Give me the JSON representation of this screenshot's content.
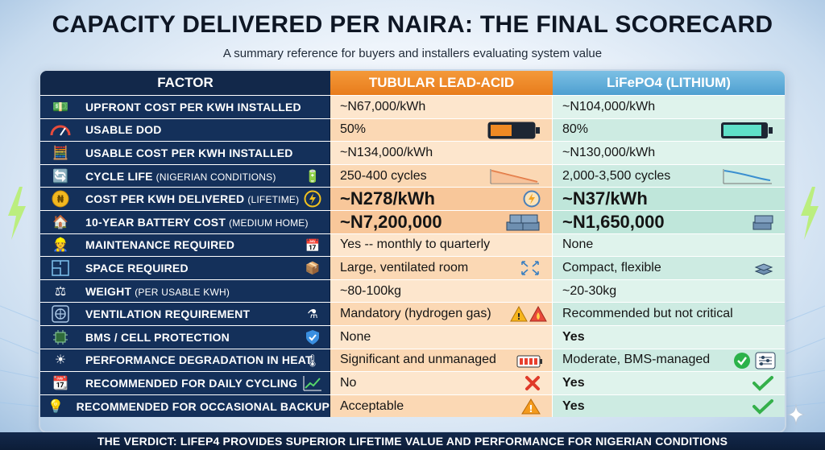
{
  "title": "CAPACITY DELIVERED PER NAIRA: THE FINAL SCORECARD",
  "subtitle": "A summary reference for buyers and installers evaluating system value",
  "headers": {
    "factor": "FACTOR",
    "lead": "TUBULAR LEAD-ACID",
    "lithium": "LiFePO4 (LITHIUM)"
  },
  "rows": [
    {
      "icon": "money-wrench-icon",
      "label": "UPFRONT COST PER kWh INSTALLED",
      "sub": "",
      "lead": "~N67,000/kWh",
      "lithium": "~N104,000/kWh"
    },
    {
      "icon": "gauge-icon",
      "label": "USABLE DoD",
      "sub": "",
      "lead": "50%",
      "lithium": "80%"
    },
    {
      "icon": "calculator-icon",
      "label": "USABLE COST PER kWh INSTALLED",
      "sub": "",
      "lead": "~N134,000/kWh",
      "lithium": "~N130,000/kWh"
    },
    {
      "icon": "cycle-icon",
      "label": "CYCLE LIFE",
      "sub": "(NIGERIAN CONDITIONS)",
      "lead": "250-400 cycles",
      "lithium": "2,000-3,500 cycles"
    },
    {
      "icon": "naira-coin-icon",
      "label": "COST PER kWh DELIVERED",
      "sub": "(LIFETIME)",
      "lead": "~N278/kWh",
      "lithium": "~N37/kWh"
    },
    {
      "icon": "house-icon",
      "label": "10-YEAR BATTERY COST",
      "sub": "(MEDIUM HOME)",
      "lead": "~N7,200,000",
      "lithium": "~N1,650,000"
    },
    {
      "icon": "worker-icon",
      "label": "MAINTENANCE REQUIRED",
      "sub": "",
      "lead": "Yes -- monthly to quarterly",
      "lithium": "None"
    },
    {
      "icon": "floorplan-icon",
      "label": "SPACE REQUIRED",
      "sub": "",
      "lead": "Large, ventilated room",
      "lithium": "Compact, flexible"
    },
    {
      "icon": "scale-icon",
      "label": "WEIGHT",
      "sub": "(PER USABLE kWh)",
      "lead": "~80-100kg",
      "lithium": "~20-30kg"
    },
    {
      "icon": "fan-icon",
      "label": "VENTILATION REQUIREMENT",
      "sub": "",
      "lead": "Mandatory (hydrogen gas)",
      "lithium": "Recommended but not critical"
    },
    {
      "icon": "chip-icon",
      "label": "BMS / CELL PROTECTION",
      "sub": "",
      "lead": "None",
      "lithium": "Yes"
    },
    {
      "icon": "sun-icon",
      "label": "PERFORMANCE DEGRADATION IN HEAT",
      "sub": "",
      "lead": "Significant and unmanaged",
      "lithium": "Moderate, BMS-managed"
    },
    {
      "icon": "calendar-icon",
      "label": "RECOMMENDED FOR DAILY CYCLING",
      "sub": "",
      "lead": "No",
      "lithium": "Yes"
    },
    {
      "icon": "bulb-icon",
      "label": "RECOMMENDED FOR OCCASIONAL BACKUP",
      "sub": "",
      "lead": "Acceptable",
      "lithium": "Yes"
    }
  ],
  "verdict": "THE VERDICT: LIFEP4  PROVIDES SUPERIOR LIFETIME VALUE AND PERFORMANCE FOR NIGERIAN CONDITIONS",
  "colors": {
    "navy": "#14305a",
    "orange": "#e87c1c",
    "blue": "#4e9fd0",
    "lead_cell": "#fde6cd",
    "lithium_cell": "#dff3ec"
  }
}
